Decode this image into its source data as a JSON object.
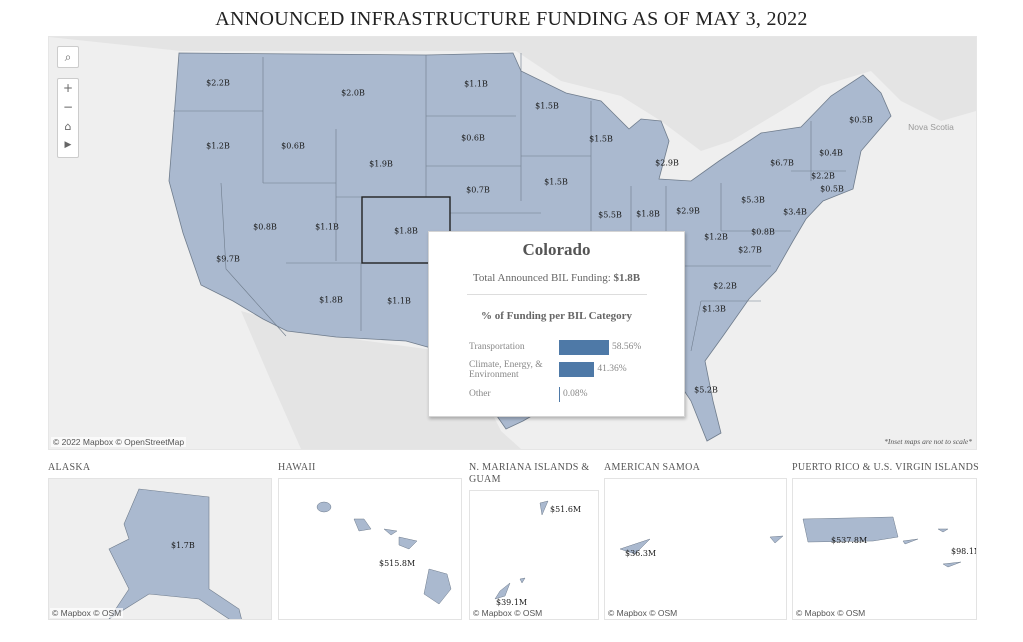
{
  "title": "ANNOUNCED INFRASTRUCTURE FUNDING AS OF MAY 3, 2022",
  "colors": {
    "land": "#aab9cf",
    "background": "#efefef",
    "bar": "#4e79a7",
    "border": "#6f7c8c"
  },
  "map": {
    "attribution": "© 2022 Mapbox  © OpenStreetMap",
    "note": "*Inset maps are not to scale*",
    "place_label": "Nova Scotia",
    "state_values": [
      "$2.2B",
      "$2.0B",
      "$1.1B",
      "$1.5B",
      "$1.2B",
      "$0.6B",
      "$1.9B",
      "$0.6B",
      "$1.5B",
      "$2.9B",
      "$0.7B",
      "$1.5B",
      "$5.5B",
      "$1.8B",
      "$2.9B",
      "$5.3B",
      "$6.7B",
      "$0.8B",
      "$1.1B",
      "$1.8B",
      "$9.7B",
      "$1.8B",
      "$1.1B",
      "$1.2B",
      "$2.7B",
      "$0.8B",
      "$3.4B",
      "$2.2B",
      "$1.3B",
      "$5.2B",
      "$0.5B",
      "$0.4B",
      "$2.2B",
      "$0.5B"
    ]
  },
  "controls": {
    "search": "search-icon",
    "zoom_in": "+",
    "zoom_out": "−",
    "home": "home-icon",
    "play": "play-icon"
  },
  "tooltip": {
    "state": "Colorado",
    "total_label": "Total Announced BIL Funding: ",
    "total_value": "$1.8B",
    "subtitle": "% of Funding per BIL Category",
    "categories": [
      {
        "label": "Transportation",
        "pct": "58.56%",
        "value": 58.56
      },
      {
        "label": "Climate, Energy, & Environment",
        "pct": "41.36%",
        "value": 41.36
      },
      {
        "label": "Other",
        "pct": "0.08%",
        "value": 0.08
      }
    ]
  },
  "insets": [
    {
      "title": "ALASKA",
      "labels": [
        "$1.7B"
      ],
      "attribution": "© Mapbox  © OSM"
    },
    {
      "title": "HAWAII",
      "labels": [
        "$515.8M"
      ],
      "attribution": ""
    },
    {
      "title": "N. MARIANA ISLANDS & GUAM",
      "labels": [
        "$51.6M",
        "$39.1M"
      ],
      "attribution": "© Mapbox  © OSM"
    },
    {
      "title": "AMERICAN SAMOA",
      "labels": [
        "$36.3M"
      ],
      "attribution": "© Mapbox  © OSM"
    },
    {
      "title": "PUERTO RICO & U.S. VIRGIN ISLANDS",
      "labels": [
        "$537.8M",
        "$98.1M"
      ],
      "attribution": "© Mapbox  © OSM"
    }
  ]
}
